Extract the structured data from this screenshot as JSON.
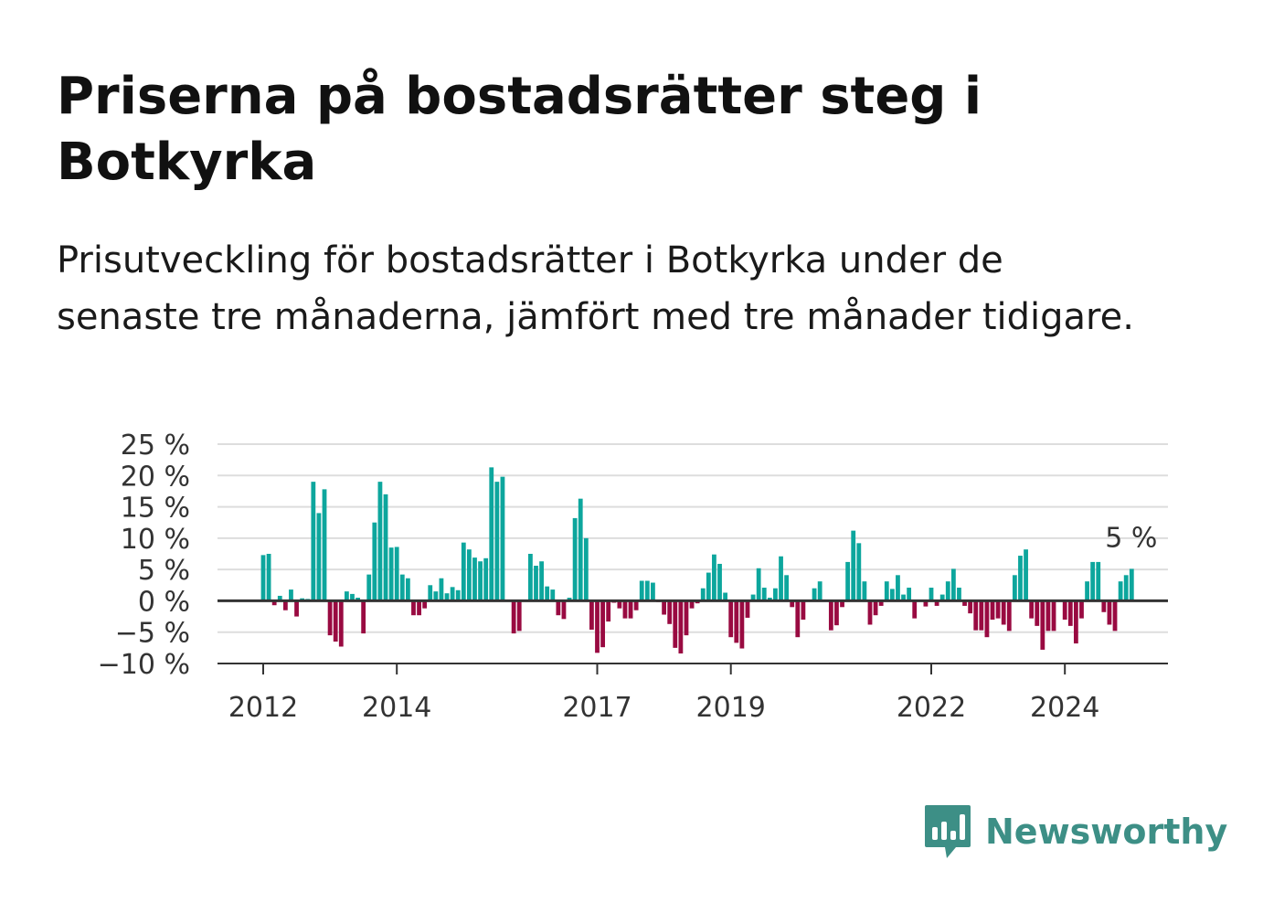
{
  "header": {
    "title": "Priserna på bostadsrätter steg i Botkyrka",
    "subtitle": "Prisutveckling för bostadsrätter i Botkyrka under de senaste tre månaderna, jämfört med tre månader tidigare."
  },
  "brand": {
    "name": "Newsworthy",
    "icon": "newsworthy-logo-icon",
    "color": "#3d8f86"
  },
  "colors": {
    "positive": "#0da69d",
    "negative": "#990a41",
    "grid": "#dddddd",
    "axis": "#333333"
  },
  "chart_data": {
    "type": "bar",
    "title": "Priserna på bostadsrätter steg i Botkyrka",
    "subtitle": "Prisutveckling för bostadsrätter i Botkyrka under de senaste tre månaderna, jämfört med tre månader tidigare.",
    "unit": "%",
    "ylim": [
      -10,
      25
    ],
    "yticks": [
      -10,
      -5,
      0,
      5,
      10,
      15,
      20,
      25
    ],
    "ytick_labels": [
      "−10 %",
      "−5 %",
      "0 %",
      "5 %",
      "10 %",
      "15 %",
      "20 %",
      "25 %"
    ],
    "xtick_labels": [
      "2012",
      "2014",
      "2017",
      "2019",
      "2022",
      "2024"
    ],
    "xtick_years": [
      2012,
      2014,
      2017,
      2019,
      2022,
      2024
    ],
    "start": "2012-01",
    "frequency": "monthly",
    "grid": true,
    "annotation": {
      "label": "5 %",
      "target": "last"
    },
    "values": [
      7.3,
      7.5,
      -0.7,
      0.8,
      -1.5,
      1.8,
      -2.5,
      0.4,
      0.3,
      19.0,
      14.0,
      17.8,
      -5.5,
      -6.5,
      -7.3,
      1.5,
      1.1,
      0.5,
      -5.2,
      4.2,
      12.5,
      19.0,
      17.0,
      8.5,
      8.6,
      4.2,
      3.6,
      -2.3,
      -2.3,
      -1.2,
      2.5,
      1.5,
      3.6,
      1.2,
      2.2,
      1.7,
      9.3,
      8.2,
      6.9,
      6.3,
      6.8,
      21.3,
      19.0,
      19.8,
      0.2,
      -5.2,
      -4.8,
      0.2,
      7.5,
      5.6,
      6.3,
      2.3,
      1.8,
      -2.3,
      -2.9,
      0.5,
      13.2,
      16.3,
      10.0,
      -4.6,
      -8.3,
      -7.4,
      -3.3,
      -0.3,
      -1.2,
      -2.8,
      -2.8,
      -1.5,
      3.2,
      3.2,
      2.9,
      -0.2,
      -2.2,
      -3.7,
      -7.5,
      -8.4,
      -5.5,
      -1.2,
      -0.4,
      2.0,
      4.5,
      7.4,
      5.9,
      1.3,
      -5.8,
      -6.7,
      -7.6,
      -2.7,
      1.0,
      5.2,
      2.1,
      0.5,
      2.0,
      7.1,
      4.1,
      -1.0,
      -5.8,
      -3.0,
      0.0,
      2.0,
      3.1,
      0.0,
      -4.7,
      -3.9,
      -1.0,
      6.2,
      11.2,
      9.2,
      3.1,
      -3.8,
      -2.3,
      -0.8,
      3.1,
      1.9,
      4.1,
      1.0,
      2.1,
      -2.8,
      0.0,
      -0.9,
      2.1,
      -0.8,
      1.0,
      3.1,
      5.1,
      2.1,
      -0.8,
      -2.0,
      -4.7,
      -4.7,
      -5.8,
      -3.0,
      -2.8,
      -3.8,
      -4.8,
      4.1,
      7.2,
      8.2,
      -2.8,
      -4.0,
      -7.8,
      -4.8,
      -4.8,
      0.0,
      -3.0,
      -4.0,
      -6.8,
      -2.8,
      3.1,
      6.2,
      6.2,
      -1.8,
      -3.8,
      -4.8,
      3.1,
      4.1,
      5.1
    ]
  }
}
